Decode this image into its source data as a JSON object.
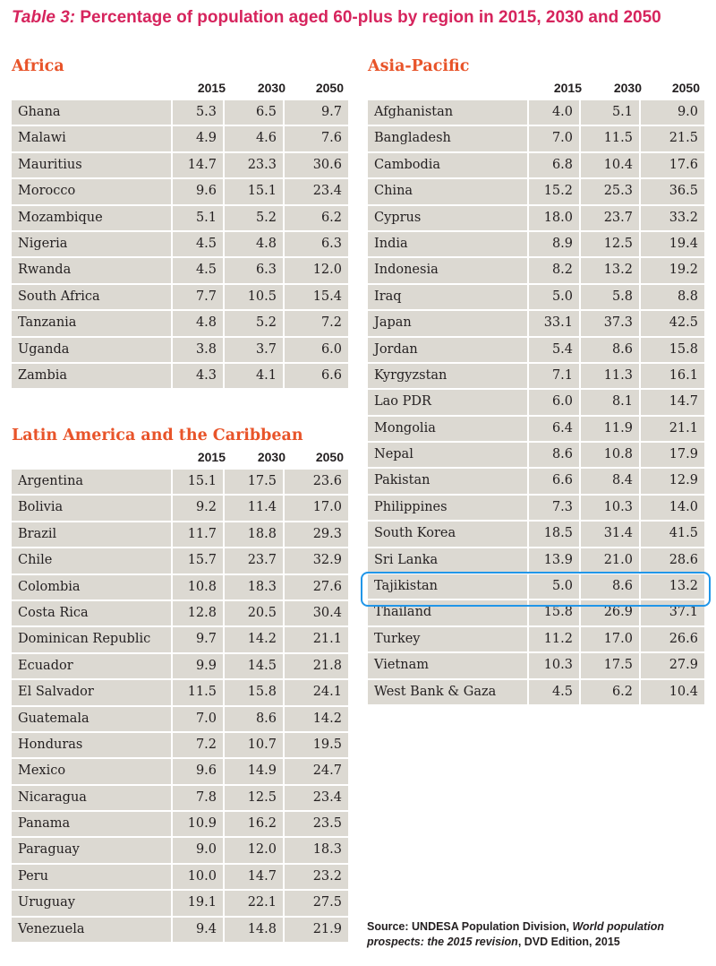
{
  "title": {
    "lead": "Table 3:",
    "text": "Percentage of population aged 60-plus by region in 2015, 2030 and 2050"
  },
  "years": [
    "2015",
    "2030",
    "2050"
  ],
  "africa": {
    "heading": "Africa",
    "rows": [
      {
        "country": "Ghana",
        "v2015": "5.3",
        "v2030": "6.5",
        "v2050": "9.7"
      },
      {
        "country": "Malawi",
        "v2015": "4.9",
        "v2030": "4.6",
        "v2050": "7.6"
      },
      {
        "country": "Mauritius",
        "v2015": "14.7",
        "v2030": "23.3",
        "v2050": "30.6"
      },
      {
        "country": "Morocco",
        "v2015": "9.6",
        "v2030": "15.1",
        "v2050": "23.4"
      },
      {
        "country": "Mozambique",
        "v2015": "5.1",
        "v2030": "5.2",
        "v2050": "6.2"
      },
      {
        "country": "Nigeria",
        "v2015": "4.5",
        "v2030": "4.8",
        "v2050": "6.3"
      },
      {
        "country": "Rwanda",
        "v2015": "4.5",
        "v2030": "6.3",
        "v2050": "12.0"
      },
      {
        "country": "South Africa",
        "v2015": "7.7",
        "v2030": "10.5",
        "v2050": "15.4"
      },
      {
        "country": "Tanzania",
        "v2015": "4.8",
        "v2030": "5.2",
        "v2050": "7.2"
      },
      {
        "country": "Uganda",
        "v2015": "3.8",
        "v2030": "3.7",
        "v2050": "6.0"
      },
      {
        "country": "Zambia",
        "v2015": "4.3",
        "v2030": "4.1",
        "v2050": "6.6"
      }
    ]
  },
  "latam": {
    "heading": "Latin America and the Caribbean",
    "rows": [
      {
        "country": "Argentina",
        "v2015": "15.1",
        "v2030": "17.5",
        "v2050": "23.6"
      },
      {
        "country": "Bolivia",
        "v2015": "9.2",
        "v2030": "11.4",
        "v2050": "17.0"
      },
      {
        "country": "Brazil",
        "v2015": "11.7",
        "v2030": "18.8",
        "v2050": "29.3"
      },
      {
        "country": "Chile",
        "v2015": "15.7",
        "v2030": "23.7",
        "v2050": "32.9"
      },
      {
        "country": "Colombia",
        "v2015": "10.8",
        "v2030": "18.3",
        "v2050": "27.6"
      },
      {
        "country": "Costa Rica",
        "v2015": "12.8",
        "v2030": "20.5",
        "v2050": "30.4"
      },
      {
        "country": "Dominican Republic",
        "v2015": "9.7",
        "v2030": "14.2",
        "v2050": "21.1"
      },
      {
        "country": "Ecuador",
        "v2015": "9.9",
        "v2030": "14.5",
        "v2050": "21.8"
      },
      {
        "country": "El Salvador",
        "v2015": "11.5",
        "v2030": "15.8",
        "v2050": "24.1"
      },
      {
        "country": "Guatemala",
        "v2015": "7.0",
        "v2030": "8.6",
        "v2050": "14.2"
      },
      {
        "country": "Honduras",
        "v2015": "7.2",
        "v2030": "10.7",
        "v2050": "19.5"
      },
      {
        "country": "Mexico",
        "v2015": "9.6",
        "v2030": "14.9",
        "v2050": "24.7"
      },
      {
        "country": "Nicaragua",
        "v2015": "7.8",
        "v2030": "12.5",
        "v2050": "23.4"
      },
      {
        "country": "Panama",
        "v2015": "10.9",
        "v2030": "16.2",
        "v2050": "23.5"
      },
      {
        "country": "Paraguay",
        "v2015": "9.0",
        "v2030": "12.0",
        "v2050": "18.3"
      },
      {
        "country": "Peru",
        "v2015": "10.0",
        "v2030": "14.7",
        "v2050": "23.2"
      },
      {
        "country": "Uruguay",
        "v2015": "19.1",
        "v2030": "22.1",
        "v2050": "27.5"
      },
      {
        "country": "Venezuela",
        "v2015": "9.4",
        "v2030": "14.8",
        "v2050": "21.9"
      }
    ]
  },
  "asia": {
    "heading": "Asia-Pacific",
    "rows": [
      {
        "country": "Afghanistan",
        "v2015": "4.0",
        "v2030": "5.1",
        "v2050": "9.0"
      },
      {
        "country": "Bangladesh",
        "v2015": "7.0",
        "v2030": "11.5",
        "v2050": "21.5"
      },
      {
        "country": "Cambodia",
        "v2015": "6.8",
        "v2030": "10.4",
        "v2050": "17.6"
      },
      {
        "country": "China",
        "v2015": "15.2",
        "v2030": "25.3",
        "v2050": "36.5"
      },
      {
        "country": "Cyprus",
        "v2015": "18.0",
        "v2030": "23.7",
        "v2050": "33.2"
      },
      {
        "country": "India",
        "v2015": "8.9",
        "v2030": "12.5",
        "v2050": "19.4"
      },
      {
        "country": "Indonesia",
        "v2015": "8.2",
        "v2030": "13.2",
        "v2050": "19.2"
      },
      {
        "country": "Iraq",
        "v2015": "5.0",
        "v2030": "5.8",
        "v2050": "8.8"
      },
      {
        "country": "Japan",
        "v2015": "33.1",
        "v2030": "37.3",
        "v2050": "42.5"
      },
      {
        "country": "Jordan",
        "v2015": "5.4",
        "v2030": "8.6",
        "v2050": "15.8"
      },
      {
        "country": "Kyrgyzstan",
        "v2015": "7.1",
        "v2030": "11.3",
        "v2050": "16.1"
      },
      {
        "country": "Lao PDR",
        "v2015": "6.0",
        "v2030": "8.1",
        "v2050": "14.7"
      },
      {
        "country": "Mongolia",
        "v2015": "6.4",
        "v2030": "11.9",
        "v2050": "21.1"
      },
      {
        "country": "Nepal",
        "v2015": "8.6",
        "v2030": "10.8",
        "v2050": "17.9"
      },
      {
        "country": "Pakistan",
        "v2015": "6.6",
        "v2030": "8.4",
        "v2050": "12.9"
      },
      {
        "country": "Philippines",
        "v2015": "7.3",
        "v2030": "10.3",
        "v2050": "14.0"
      },
      {
        "country": "South Korea",
        "v2015": "18.5",
        "v2030": "31.4",
        "v2050": "41.5"
      },
      {
        "country": "Sri Lanka",
        "v2015": "13.9",
        "v2030": "21.0",
        "v2050": "28.6"
      },
      {
        "country": "Tajikistan",
        "v2015": "5.0",
        "v2030": "8.6",
        "v2050": "13.2"
      },
      {
        "country": "Thailand",
        "v2015": "15.8",
        "v2030": "26.9",
        "v2050": "37.1"
      },
      {
        "country": "Turkey",
        "v2015": "11.2",
        "v2030": "17.0",
        "v2050": "26.6"
      },
      {
        "country": "Vietnam",
        "v2015": "10.3",
        "v2030": "17.5",
        "v2050": "27.9"
      },
      {
        "country": "West Bank & Gaza",
        "v2015": "4.5",
        "v2030": "6.2",
        "v2050": "10.4"
      }
    ]
  },
  "source": {
    "prefix": "Source: UNDESA Population Division,",
    "italic": "World population prospects: the 2015 revision",
    "suffix": ", DVD Edition, 2015"
  }
}
